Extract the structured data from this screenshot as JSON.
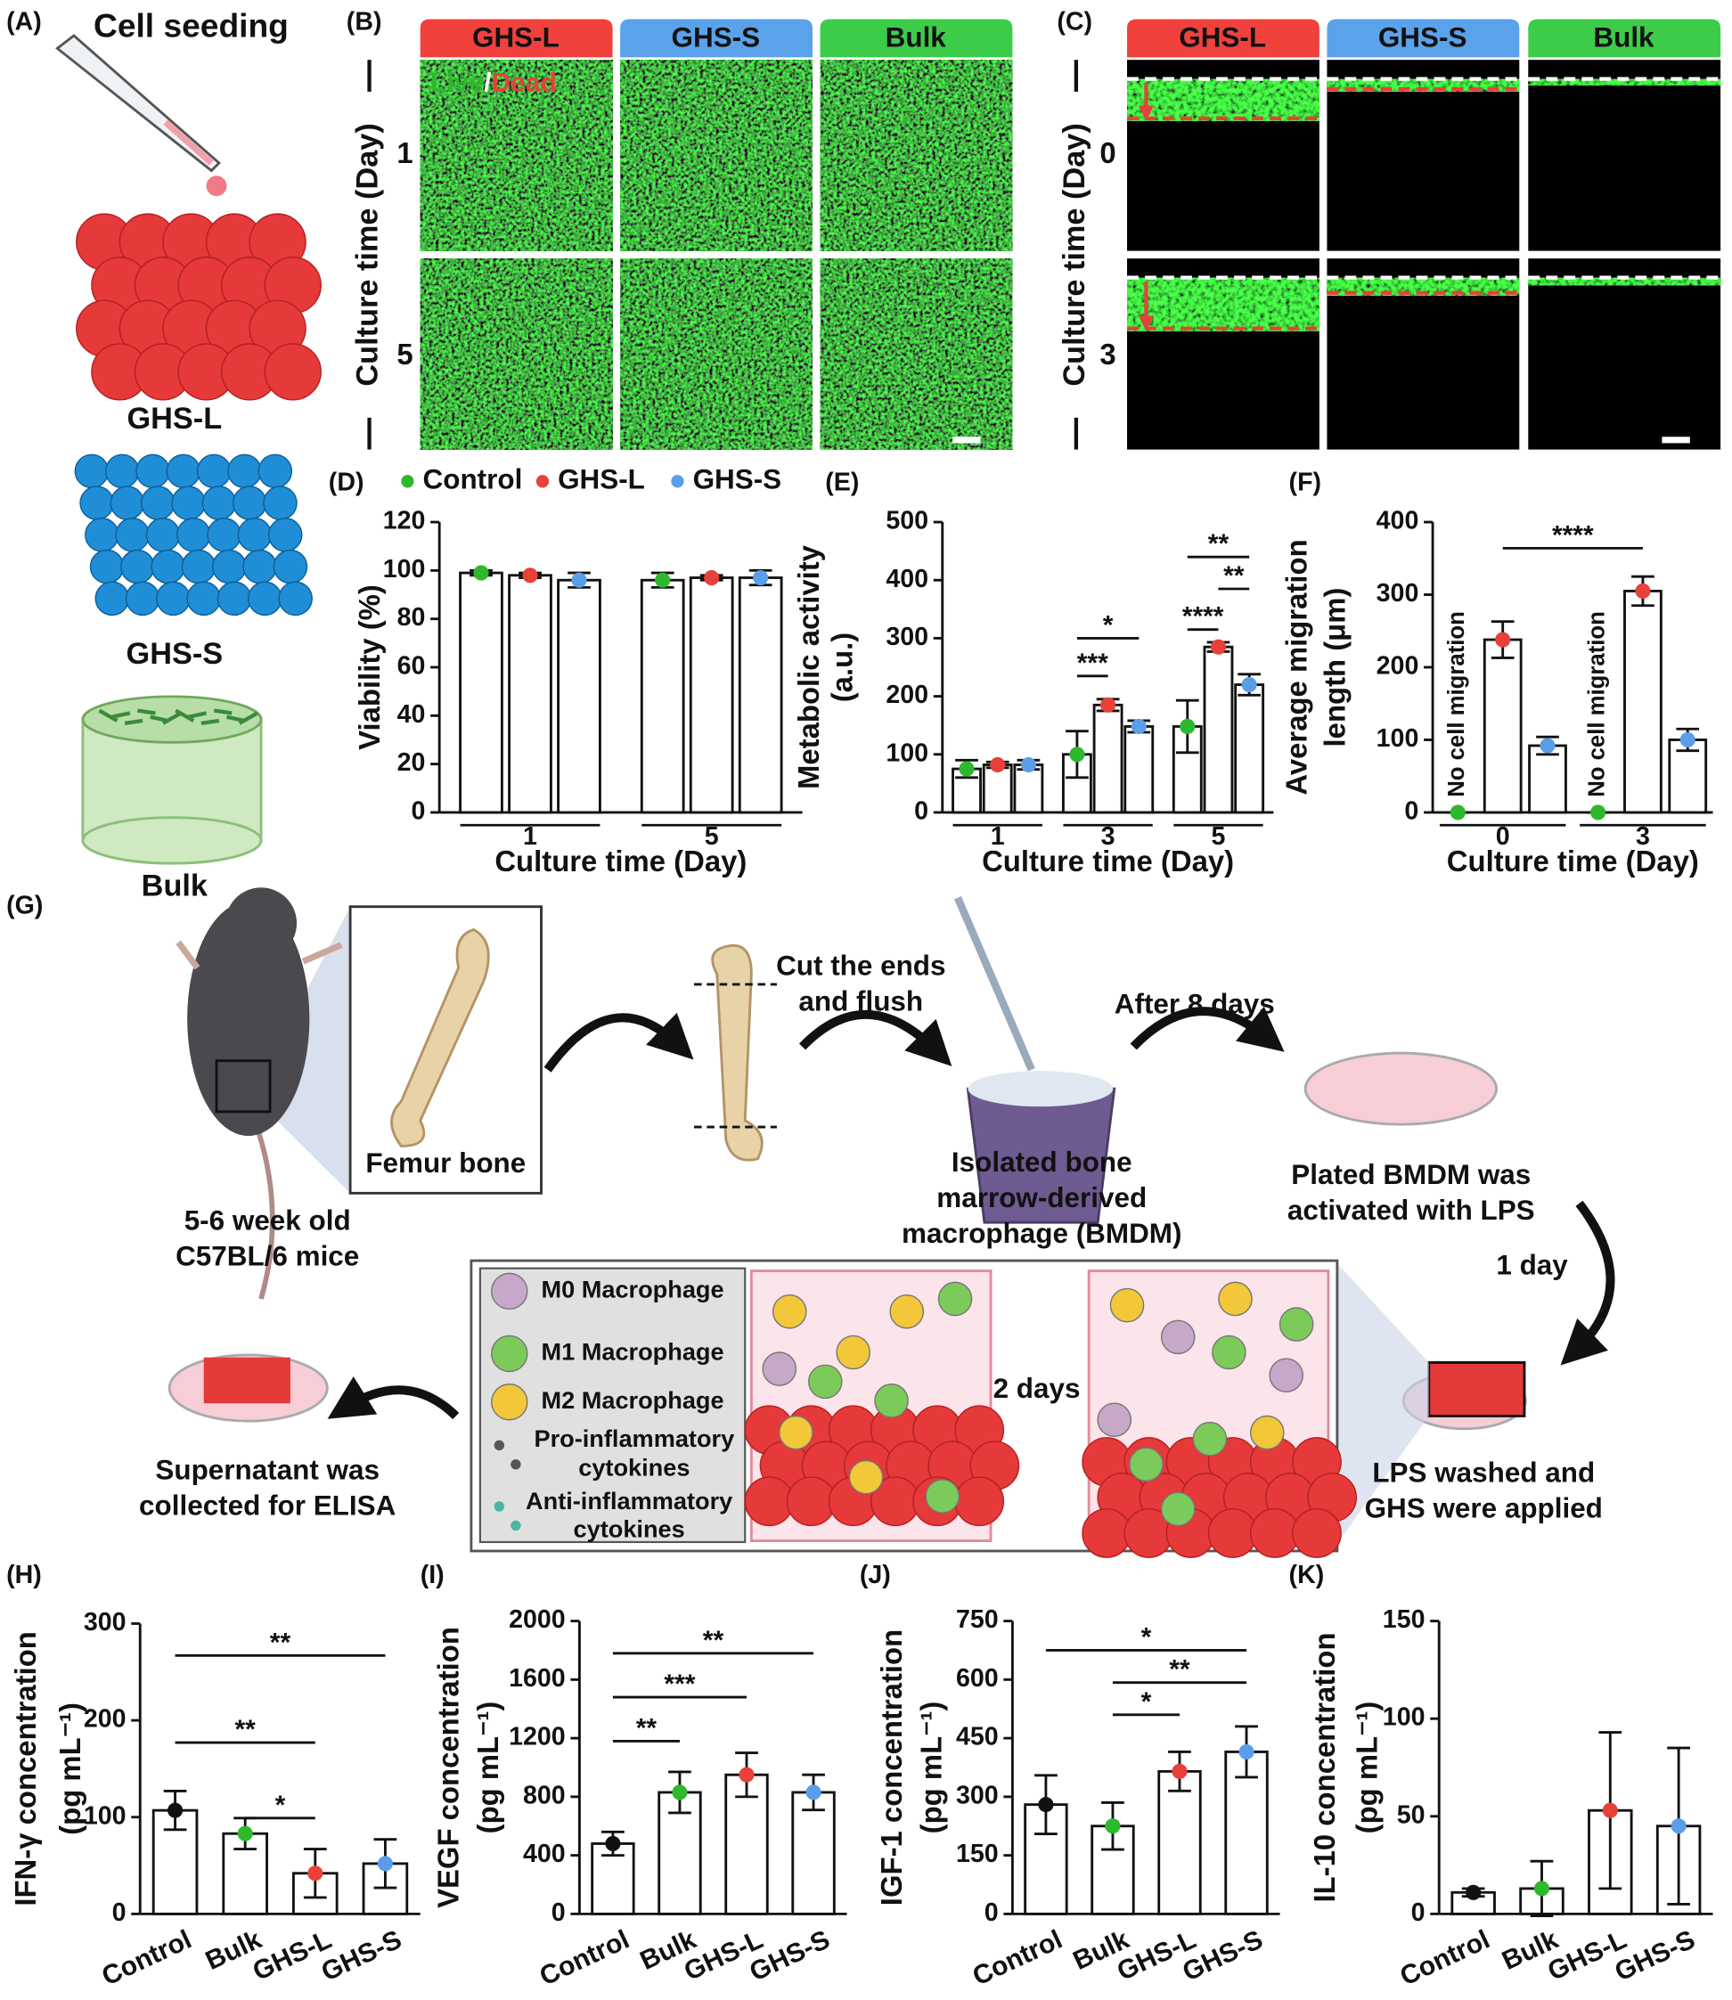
{
  "panel_labels": [
    "(A)",
    "(B)",
    "(C)",
    "(D)",
    "(E)",
    "(F)",
    "(G)",
    "(H)",
    "(I)",
    "(J)",
    "(K)"
  ],
  "panel_a": {
    "title": "Cell seeding",
    "items": [
      "GHS-L",
      "GHS-S",
      "Bulk"
    ]
  },
  "panel_b": {
    "columns": [
      "GHS-L",
      "GHS-S",
      "Bulk"
    ],
    "stain": [
      "Live",
      "/",
      "Dead"
    ],
    "axis_label": "Culture time (Day)",
    "rows": [
      "1",
      "5"
    ]
  },
  "panel_c": {
    "columns": [
      "GHS-L",
      "GHS-S",
      "Bulk"
    ],
    "axis_label": "Culture time (Day)",
    "rows": [
      "0",
      "3"
    ]
  },
  "chart_data": [
    {
      "type": "bar",
      "categories": [
        "1",
        "5"
      ],
      "series": [
        {
          "name": "Control",
          "color": "#2db82d",
          "values": [
            99,
            96
          ],
          "errors": [
            1,
            3
          ]
        },
        {
          "name": "GHS-L",
          "color": "#e8403a",
          "values": [
            98,
            97
          ],
          "errors": [
            1,
            1
          ]
        },
        {
          "name": "GHS-S",
          "color": "#5b9ee8",
          "values": [
            96,
            97
          ],
          "errors": [
            3,
            3
          ]
        }
      ],
      "ylim": [
        0,
        120
      ],
      "yticks": [
        0,
        20,
        40,
        60,
        80,
        100,
        120
      ],
      "ylabel": "Viability (%)",
      "xlabel": "Culture time (Day)",
      "legend": "top"
    },
    {
      "type": "bar",
      "categories": [
        "1",
        "3",
        "5"
      ],
      "series": [
        {
          "color": "#2db82d",
          "values": [
            75,
            100,
            148
          ],
          "errors": [
            15,
            40,
            45
          ]
        },
        {
          "color": "#e8403a",
          "values": [
            82,
            185,
            285
          ],
          "errors": [
            5,
            10,
            8
          ]
        },
        {
          "color": "#5b9ee8",
          "values": [
            82,
            148,
            220
          ],
          "errors": [
            8,
            10,
            18
          ]
        }
      ],
      "ylim": [
        0,
        500
      ],
      "yticks": [
        0,
        100,
        200,
        300,
        400,
        500
      ],
      "ylabel": [
        "Metabolic activity",
        "(a.u.)"
      ],
      "xlabel": "Culture time (Day)",
      "annotations": [
        "***",
        "*",
        "****",
        "**",
        "**"
      ]
    },
    {
      "type": "bar",
      "categories": [
        "0",
        "3"
      ],
      "series": [
        {
          "color": "#2db82d",
          "values": [
            0,
            0
          ],
          "errors": [
            0,
            0
          ]
        },
        {
          "color": "#e8403a",
          "values": [
            238,
            305
          ],
          "errors": [
            25,
            20
          ]
        },
        {
          "color": "#5b9ee8",
          "values": [
            92,
            100
          ],
          "errors": [
            12,
            15
          ]
        }
      ],
      "ylim": [
        0,
        400
      ],
      "yticks": [
        0,
        100,
        200,
        300,
        400
      ],
      "ylabel": [
        "Average migration",
        "length (μm)"
      ],
      "xlabel": "Culture time (Day)",
      "annotations": [
        "No cell migration",
        "No cell migration",
        "****"
      ]
    },
    {
      "type": "bar",
      "categories": [
        "Control",
        "Bulk",
        "GHS-L",
        "GHS-S"
      ],
      "values": [
        107,
        83,
        42,
        52
      ],
      "errors": [
        20,
        16,
        25,
        25
      ],
      "colors": [
        "#111111",
        "#2db82d",
        "#e8403a",
        "#5b9ee8"
      ],
      "ylim": [
        0,
        300
      ],
      "yticks": [
        0,
        100,
        200,
        300
      ],
      "ylabel": [
        "IFN-γ concentration",
        "(pg mL⁻¹)"
      ],
      "annotations": [
        "**",
        "**",
        "*"
      ]
    },
    {
      "type": "bar",
      "categories": [
        "Control",
        "Bulk",
        "GHS-L",
        "GHS-S"
      ],
      "values": [
        480,
        830,
        950,
        830
      ],
      "errors": [
        80,
        140,
        150,
        120
      ],
      "colors": [
        "#111111",
        "#2db82d",
        "#e8403a",
        "#5b9ee8"
      ],
      "ylim": [
        0,
        2000
      ],
      "yticks": [
        0,
        400,
        800,
        1200,
        1600,
        2000
      ],
      "ylabel": [
        "VEGF concentration",
        "(pg mL⁻¹)"
      ],
      "annotations": [
        "**",
        "***",
        "**"
      ]
    },
    {
      "type": "bar",
      "categories": [
        "Control",
        "Bulk",
        "GHS-L",
        "GHS-S"
      ],
      "values": [
        280,
        225,
        365,
        415
      ],
      "errors": [
        75,
        60,
        50,
        65
      ],
      "colors": [
        "#111111",
        "#2db82d",
        "#e8403a",
        "#5b9ee8"
      ],
      "ylim": [
        0,
        750
      ],
      "yticks": [
        0,
        150,
        300,
        450,
        600,
        750
      ],
      "ylabel": [
        "IGF-1 concentration",
        "(pg mL⁻¹)"
      ],
      "annotations": [
        "*",
        "**",
        "*"
      ]
    },
    {
      "type": "bar",
      "categories": [
        "Control",
        "Bulk",
        "GHS-L",
        "GHS-S"
      ],
      "values": [
        11,
        13,
        53,
        45
      ],
      "errors": [
        2,
        14,
        40,
        40
      ],
      "colors": [
        "#111111",
        "#2db82d",
        "#e8403a",
        "#5b9ee8"
      ],
      "ylim": [
        0,
        150
      ],
      "yticks": [
        0,
        50,
        100,
        150
      ],
      "ylabel": [
        "IL-10 concentration",
        "(pg mL⁻¹)"
      ]
    }
  ],
  "diagram": {
    "mice": [
      "5-6 week old",
      "C57BL/6 mice"
    ],
    "femur": "Femur bone",
    "cut": [
      "Cut the ends",
      "and flush"
    ],
    "after": "After 8 days",
    "isolated": [
      "Isolated bone",
      "marrow-derived",
      "macrophage (BMDM)"
    ],
    "plated": [
      "Plated BMDM was",
      "activated with LPS"
    ],
    "one_day": "1 day",
    "lps": [
      "LPS washed and",
      "GHS were applied"
    ],
    "two_days": "2 days",
    "supernatant": [
      "Supernatant was",
      "collected for ELISA"
    ],
    "legend": [
      [
        "M0 Macrophage"
      ],
      [
        "M1 Macrophage"
      ],
      [
        "M2 Macrophage"
      ],
      [
        "Pro-inflammatory",
        "cytokines"
      ],
      [
        "Anti-inflammatory",
        "cytokines"
      ]
    ]
  }
}
